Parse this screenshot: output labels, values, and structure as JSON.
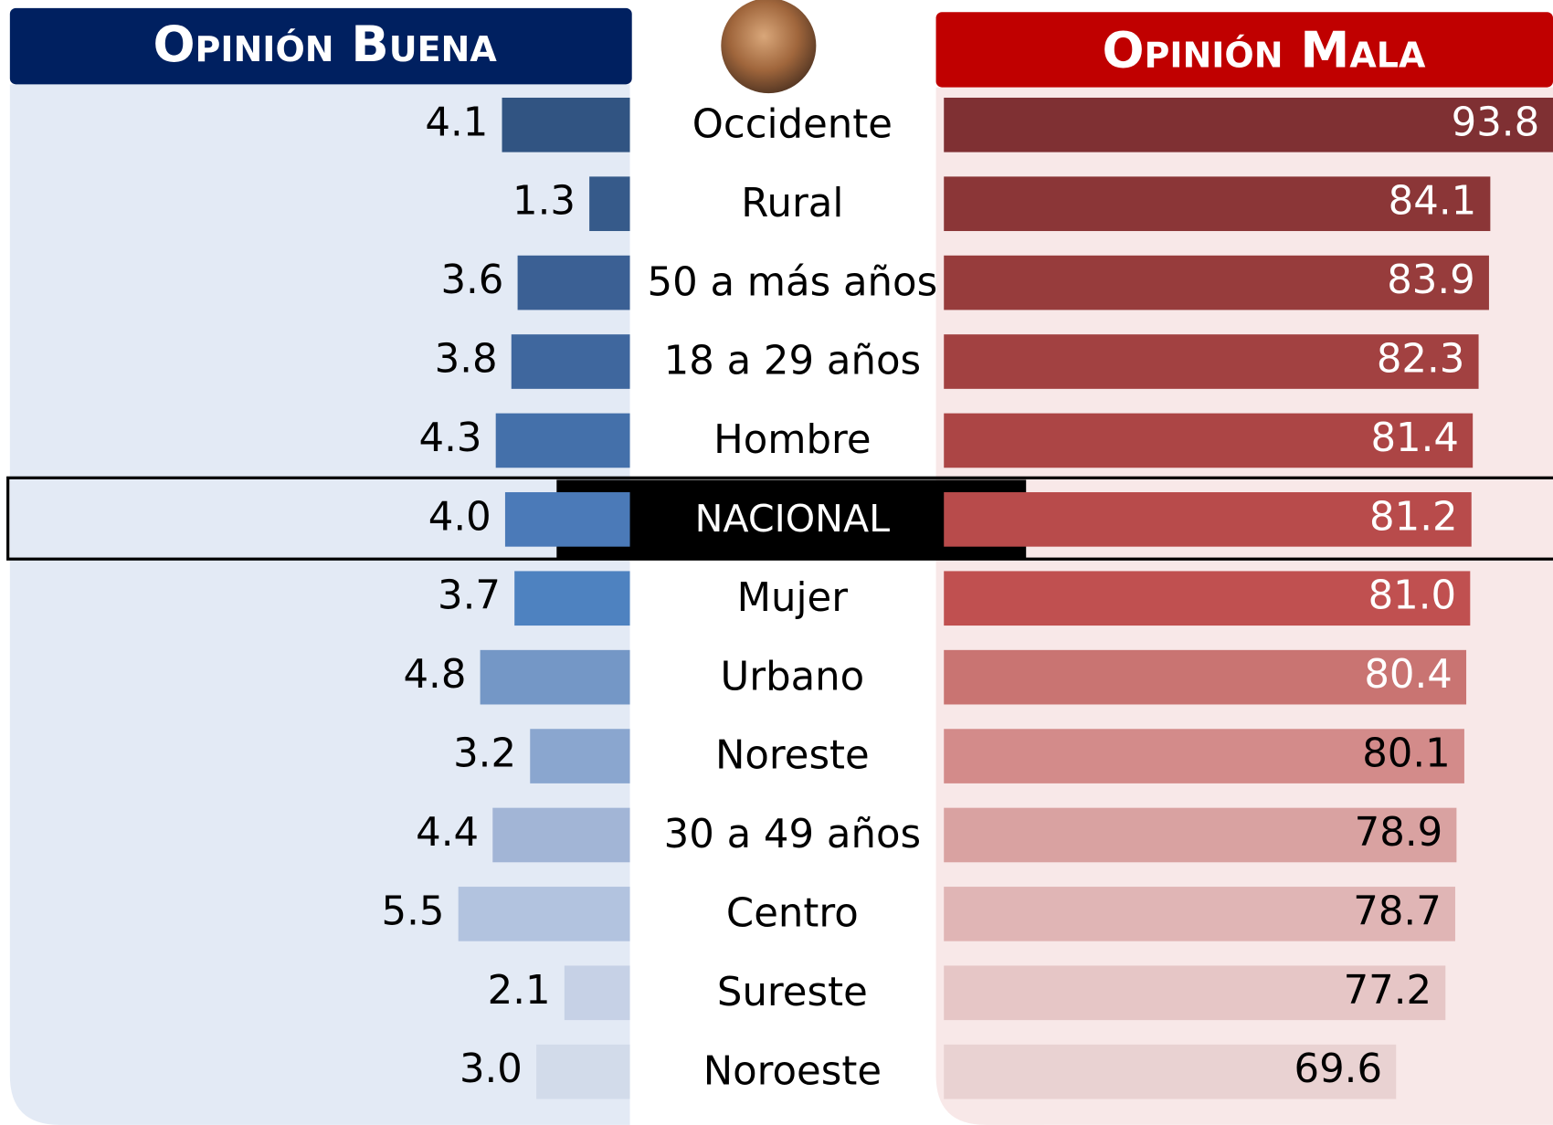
{
  "chart_data": {
    "type": "butterfly",
    "categories": [
      "Occidente",
      "Rural",
      "50 a más años",
      "18 a 29 años",
      "Hombre",
      "NACIONAL",
      "Mujer",
      "Urbano",
      "Noreste",
      "30 a 49 años",
      "Centro",
      "Sureste",
      "Noroeste"
    ],
    "highlight_index": 5,
    "series": [
      {
        "name": "Opinión Buena",
        "color": "#002060",
        "values": [
          4.1,
          1.3,
          3.6,
          3.8,
          4.3,
          4.0,
          3.7,
          4.8,
          3.2,
          4.4,
          5.5,
          2.1,
          3.0
        ],
        "value_labels": [
          "4.1",
          "1.3",
          "3.6",
          "3.8",
          "4.3",
          "4.0",
          "3.7",
          "4.8",
          "3.2",
          "4.4",
          "5.5",
          "2.1",
          "3.0"
        ],
        "colors": [
          "#315482",
          "#365a8a",
          "#3b6094",
          "#3f679e",
          "#4470aa",
          "#4b7ab8",
          "#4e82c0",
          "#7497c6",
          "#8aa6cf",
          "#a2b5d6",
          "#b2c3df",
          "#c6d1e6",
          "#d2dbea"
        ]
      },
      {
        "name": "Opinión Mala",
        "color": "#c00000",
        "values": [
          93.8,
          84.1,
          83.9,
          82.3,
          81.4,
          81.2,
          81.0,
          80.4,
          80.1,
          78.9,
          78.7,
          77.2,
          69.6
        ],
        "value_labels": [
          "93.8",
          "84.1",
          "83.9",
          "82.3",
          "81.4",
          "81.2",
          "81.0",
          "80.4",
          "80.1",
          "78.9",
          "78.7",
          "77.2",
          "69.6"
        ],
        "colors": [
          "#7f3033",
          "#8b3637",
          "#973c3c",
          "#a24141",
          "#ac4545",
          "#b84b4b",
          "#c05050",
          "#c97472",
          "#d38b8a",
          "#d9a2a1",
          "#e0b5b5",
          "#e6c6c6",
          "#e9d2d2"
        ]
      }
    ]
  }
}
